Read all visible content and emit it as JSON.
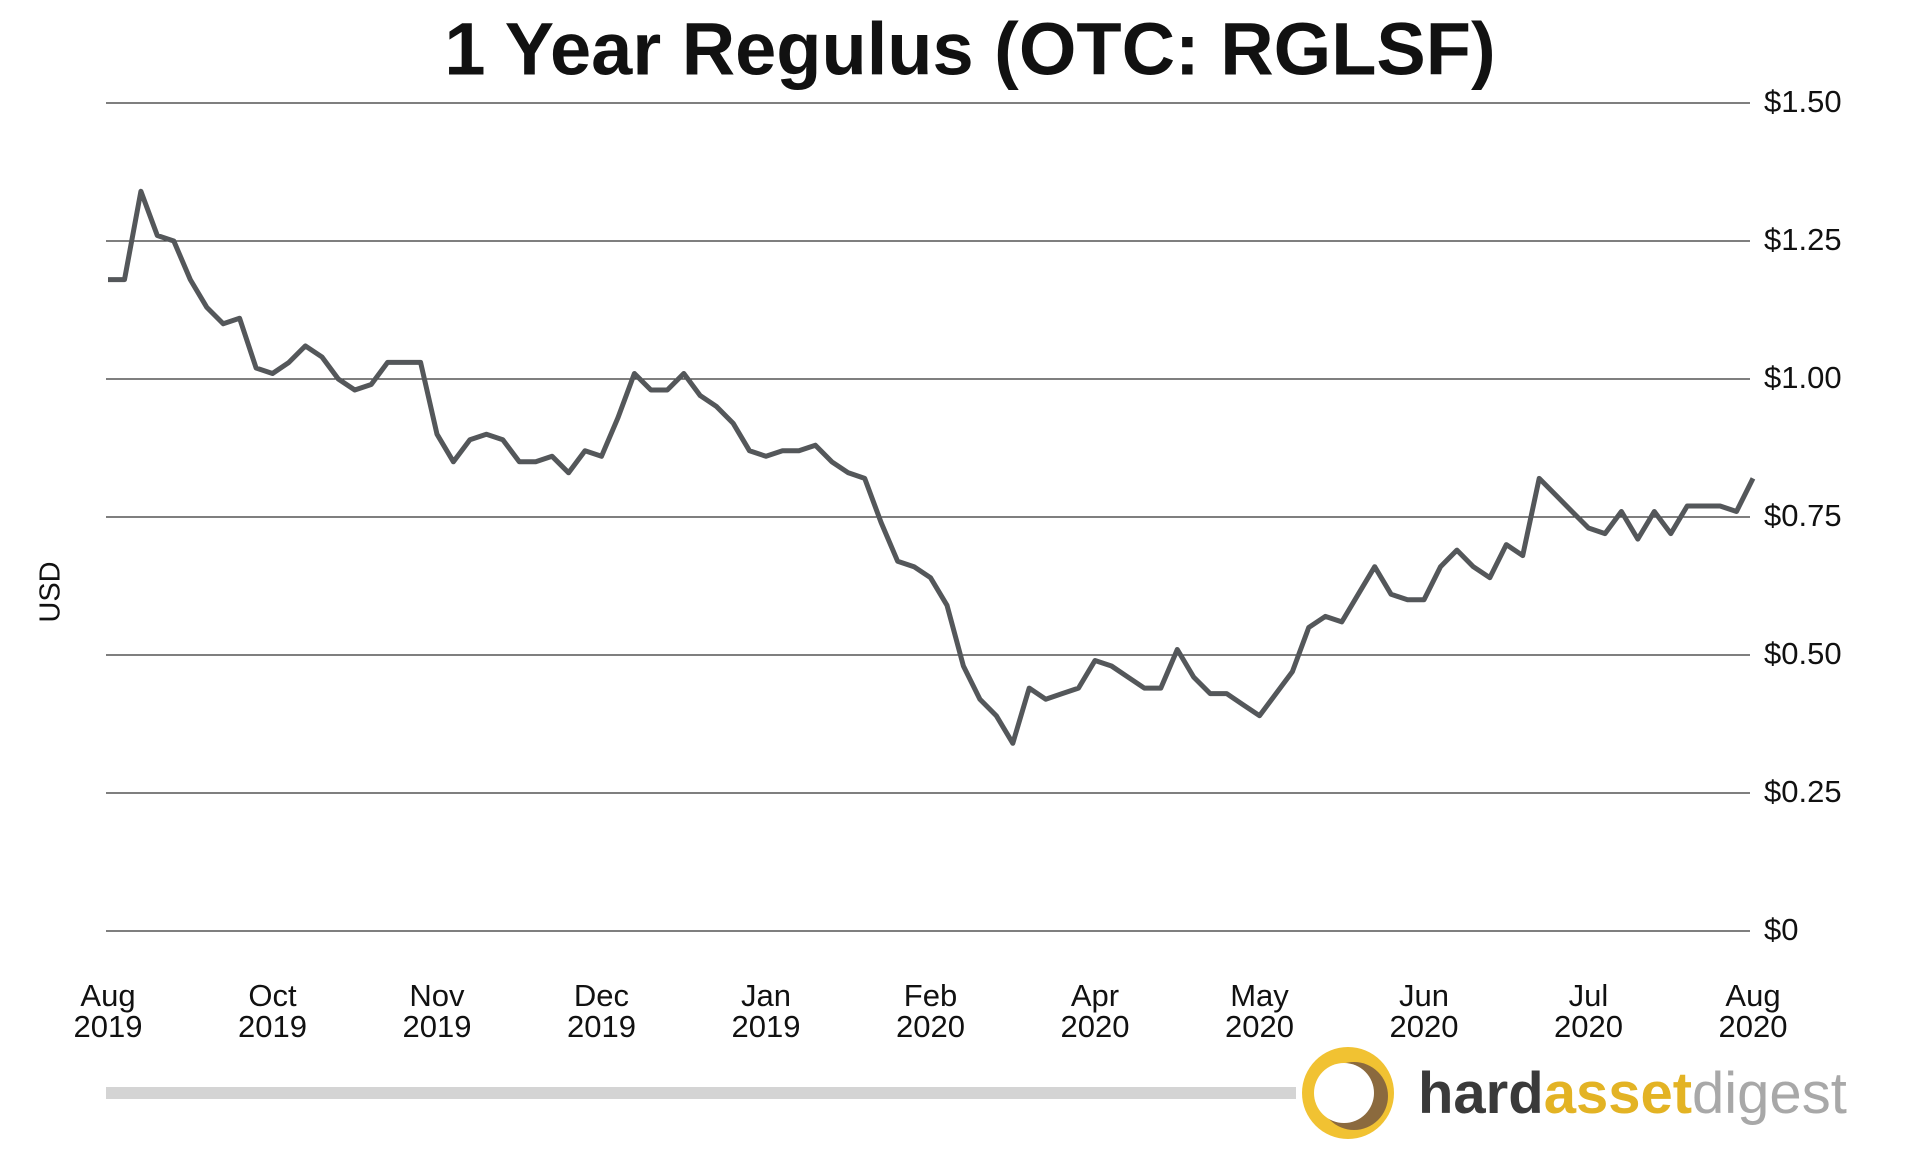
{
  "chart_data": {
    "type": "line",
    "title": "1 Year Regulus (OTC: RGLSF)",
    "y_label": "USD",
    "categories": [
      "Aug 2019",
      null,
      null,
      null,
      null,
      null,
      null,
      null,
      null,
      null,
      "Oct 2019",
      null,
      null,
      null,
      null,
      null,
      null,
      null,
      null,
      null,
      "Nov 2019",
      null,
      null,
      null,
      null,
      null,
      null,
      null,
      null,
      null,
      "Dec 2019",
      null,
      null,
      null,
      null,
      null,
      null,
      null,
      null,
      null,
      "Jan 2019",
      null,
      null,
      null,
      null,
      null,
      null,
      null,
      null,
      null,
      "Feb 2020",
      null,
      null,
      null,
      null,
      null,
      null,
      null,
      null,
      null,
      "Apr 2020",
      null,
      null,
      null,
      null,
      null,
      null,
      null,
      null,
      null,
      "May 2020",
      null,
      null,
      null,
      null,
      null,
      null,
      null,
      null,
      null,
      "Jun 2020",
      null,
      null,
      null,
      null,
      null,
      null,
      null,
      null,
      null,
      "Jul 2020",
      null,
      null,
      null,
      null,
      null,
      null,
      null,
      null,
      null,
      "Aug 2020"
    ],
    "values": [
      1.18,
      1.18,
      1.34,
      1.26,
      1.25,
      1.18,
      1.13,
      1.1,
      1.11,
      1.02,
      1.01,
      1.03,
      1.06,
      1.04,
      1.0,
      0.98,
      0.99,
      1.03,
      1.03,
      1.03,
      0.9,
      0.85,
      0.89,
      0.9,
      0.89,
      0.85,
      0.85,
      0.86,
      0.83,
      0.87,
      0.86,
      0.93,
      1.01,
      0.98,
      0.98,
      1.01,
      0.97,
      0.95,
      0.92,
      0.87,
      0.86,
      0.87,
      0.87,
      0.88,
      0.85,
      0.83,
      0.82,
      0.74,
      0.67,
      0.66,
      0.64,
      0.59,
      0.48,
      0.42,
      0.39,
      0.34,
      0.44,
      0.42,
      0.43,
      0.44,
      0.49,
      0.48,
      0.46,
      0.44,
      0.44,
      0.51,
      0.46,
      0.43,
      0.43,
      0.41,
      0.39,
      0.43,
      0.47,
      0.55,
      0.57,
      0.56,
      0.61,
      0.66,
      0.61,
      0.6,
      0.6,
      0.66,
      0.69,
      0.66,
      0.64,
      0.7,
      0.68,
      0.82,
      0.79,
      0.76,
      0.73,
      0.72,
      0.76,
      0.71,
      0.76,
      0.72,
      0.77,
      0.77,
      0.77,
      0.76,
      0.82
    ],
    "color": "#54575a",
    "ylim": [
      0,
      1.5
    ],
    "yticks": [
      {
        "value": 0,
        "label": "$0"
      },
      {
        "value": 0.25,
        "label": "$0.25"
      },
      {
        "value": 0.5,
        "label": "$0.50"
      },
      {
        "value": 0.75,
        "label": "$0.75"
      },
      {
        "value": 1,
        "label": "$1.00"
      },
      {
        "value": 1.25,
        "label": "$1.25"
      },
      {
        "value": 1.5,
        "label": "$1.50"
      }
    ],
    "grid": true
  },
  "logo": {
    "part1": "hard",
    "part2": "asset",
    "part3": "digest"
  }
}
